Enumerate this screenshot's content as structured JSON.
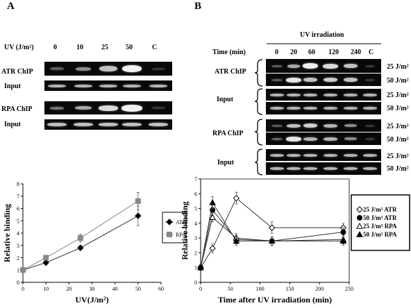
{
  "panel_a": {
    "letter": "A",
    "uv_label": "UV  (J/m²)",
    "doses": [
      "0",
      "10",
      "25",
      "50",
      "C"
    ],
    "rows": {
      "atr_chip": "ATR ChIP",
      "input1": "Input",
      "rpa_chip": "RPA ChIP",
      "input2": "Input"
    }
  },
  "panel_b": {
    "letter": "B",
    "irradiation": "UV  irradiation",
    "time_label": "Time (min)",
    "times": [
      "0",
      "20",
      "60",
      "120",
      "240",
      "C"
    ],
    "rows": {
      "atr_chip": "ATR ChIP",
      "input1": "Input",
      "rpa_chip": "RPA ChIP",
      "input2": "Input"
    },
    "doses": [
      "25 J/m²",
      "50 J/m²"
    ]
  },
  "chart_data": [
    {
      "type": "line",
      "x": [
        0,
        10,
        25,
        50
      ],
      "series": [
        {
          "name": "ATR",
          "values": [
            1.0,
            1.6,
            2.8,
            5.4
          ],
          "err": [
            0.15,
            0.2,
            0.2,
            0.8
          ],
          "marker": "diamond",
          "color": "#000000"
        },
        {
          "name": "RPA",
          "values": [
            1.0,
            2.0,
            3.6,
            6.6
          ],
          "err": [
            0.15,
            0.2,
            0.3,
            0.7
          ],
          "marker": "square",
          "color": "#888888"
        }
      ],
      "xlabel": "UV(J/m²)",
      "ylabel": "Relative binding",
      "xlim": [
        0,
        60
      ],
      "ylim": [
        0,
        8
      ],
      "xticks": [
        "0",
        "10",
        "20",
        "30",
        "40",
        "50",
        "60"
      ],
      "yticks": [
        "0",
        "1",
        "2",
        "3",
        "4",
        "5",
        "6",
        "7",
        "8"
      ],
      "legend_position": "right"
    },
    {
      "type": "line",
      "x": [
        0,
        20,
        60,
        120,
        240
      ],
      "series": [
        {
          "name": "25 J/m² ATR",
          "values": [
            1.0,
            2.3,
            5.7,
            3.7,
            3.7
          ],
          "err": [
            0.2,
            0.3,
            0.4,
            0.4,
            0.3
          ],
          "marker": "open-diamond",
          "color": "#000000"
        },
        {
          "name": "50 J/m² ATR",
          "values": [
            1.0,
            4.9,
            2.9,
            2.8,
            3.4
          ],
          "err": [
            0.2,
            0.4,
            0.3,
            0.3,
            0.3
          ],
          "marker": "filled-circle",
          "color": "#000000"
        },
        {
          "name": "25 J/m² RPA",
          "values": [
            1.0,
            4.4,
            3.0,
            2.8,
            2.9
          ],
          "err": [
            0.2,
            0.3,
            0.3,
            0.3,
            0.3
          ],
          "marker": "open-triangle",
          "color": "#000000"
        },
        {
          "name": "50 J/m² RPA",
          "values": [
            1.0,
            5.4,
            2.8,
            2.8,
            2.8
          ],
          "err": [
            0.2,
            0.4,
            0.3,
            0.3,
            0.3
          ],
          "marker": "filled-triangle",
          "color": "#000000"
        }
      ],
      "xlabel": "Time after UV irradiation (min)",
      "ylabel": "Relative binding",
      "xlim": [
        0,
        250
      ],
      "ylim": [
        0,
        7
      ],
      "xticks": [
        "0",
        "50",
        "100",
        "150",
        "200",
        "250"
      ],
      "yticks": [
        "0",
        "1",
        "2",
        "3",
        "4",
        "5",
        "6",
        "7"
      ],
      "legend_position": "right"
    }
  ]
}
